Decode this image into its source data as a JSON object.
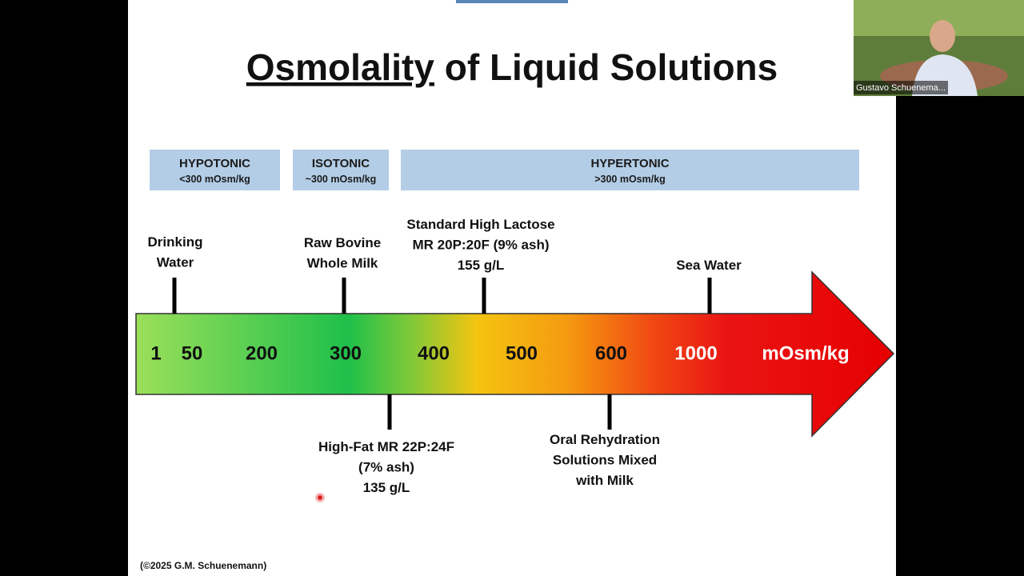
{
  "slide": {
    "title": {
      "underlined": "Osmolality",
      "rest": "of Liquid Solutions"
    },
    "zones": [
      {
        "label": "HYPOTONIC",
        "sublabel": "<300 mOsm/kg"
      },
      {
        "label": "ISOTONIC",
        "sublabel": "~300 mOsm/kg"
      },
      {
        "label": "HYPERTONIC",
        "sublabel": ">300 mOsm/kg"
      }
    ],
    "scale": [
      1,
      50,
      200,
      300,
      400,
      500,
      600,
      1000
    ],
    "unit": "mOsm/kg",
    "markers_above": [
      {
        "lines": [
          "Drinking",
          "Water"
        ]
      },
      {
        "lines": [
          "Raw Bovine",
          "Whole Milk"
        ]
      },
      {
        "lines": [
          "Standard High Lactose",
          "MR 20P:20F (9% ash)",
          "155 g/L"
        ]
      },
      {
        "lines": [
          "Sea Water"
        ]
      }
    ],
    "markers_below": [
      {
        "lines": [
          "High-Fat MR 22P:24F",
          "(7% ash)",
          "135 g/L"
        ]
      },
      {
        "lines": [
          "Oral Rehydration",
          "Solutions Mixed",
          "with Milk"
        ]
      }
    ],
    "copyright": "(©2025 G.M. Schuenemann)"
  },
  "participant": {
    "name": "Gustavo Schuenema..."
  }
}
